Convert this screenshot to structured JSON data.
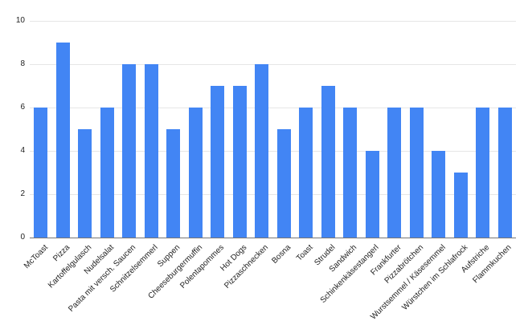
{
  "chart_data": {
    "type": "bar",
    "title": "",
    "xlabel": "",
    "ylabel": "",
    "categories": [
      "McToast",
      "Pizza",
      "Kartoffelgulasch",
      "Nudelsalat",
      "Pasta mit versch. Saucen",
      "Schnitzelsemmerl",
      "Suppen",
      "Cheeseburgermuffin",
      "Polentapommes",
      "Hot Dogs",
      "Pizzaschnecken",
      "Bosna",
      "Toast",
      "Strudel",
      "Sandwich",
      "Schinkenkäsestangerl",
      "Frankfurter",
      "Pizzabrötchen",
      "Wurstsemmel / Käsesemmel",
      "Würstchen im Schlafrock",
      "Aufstriche",
      "Flammkuchen"
    ],
    "values": [
      6,
      9,
      5,
      6,
      8,
      8,
      5,
      6,
      7,
      7,
      8,
      5,
      6,
      7,
      6,
      4,
      6,
      6,
      4,
      3,
      6,
      6
    ],
    "ylim": [
      0,
      10
    ],
    "yticks": [
      0,
      2,
      4,
      6,
      8,
      10
    ],
    "grid": true,
    "legend": "none",
    "bar_color": "#4285f4",
    "gridline_color": "#e6e6e6",
    "axis_line_color": "#757575",
    "tick_label_color": "#212121",
    "background_color": "#ffffff"
  }
}
